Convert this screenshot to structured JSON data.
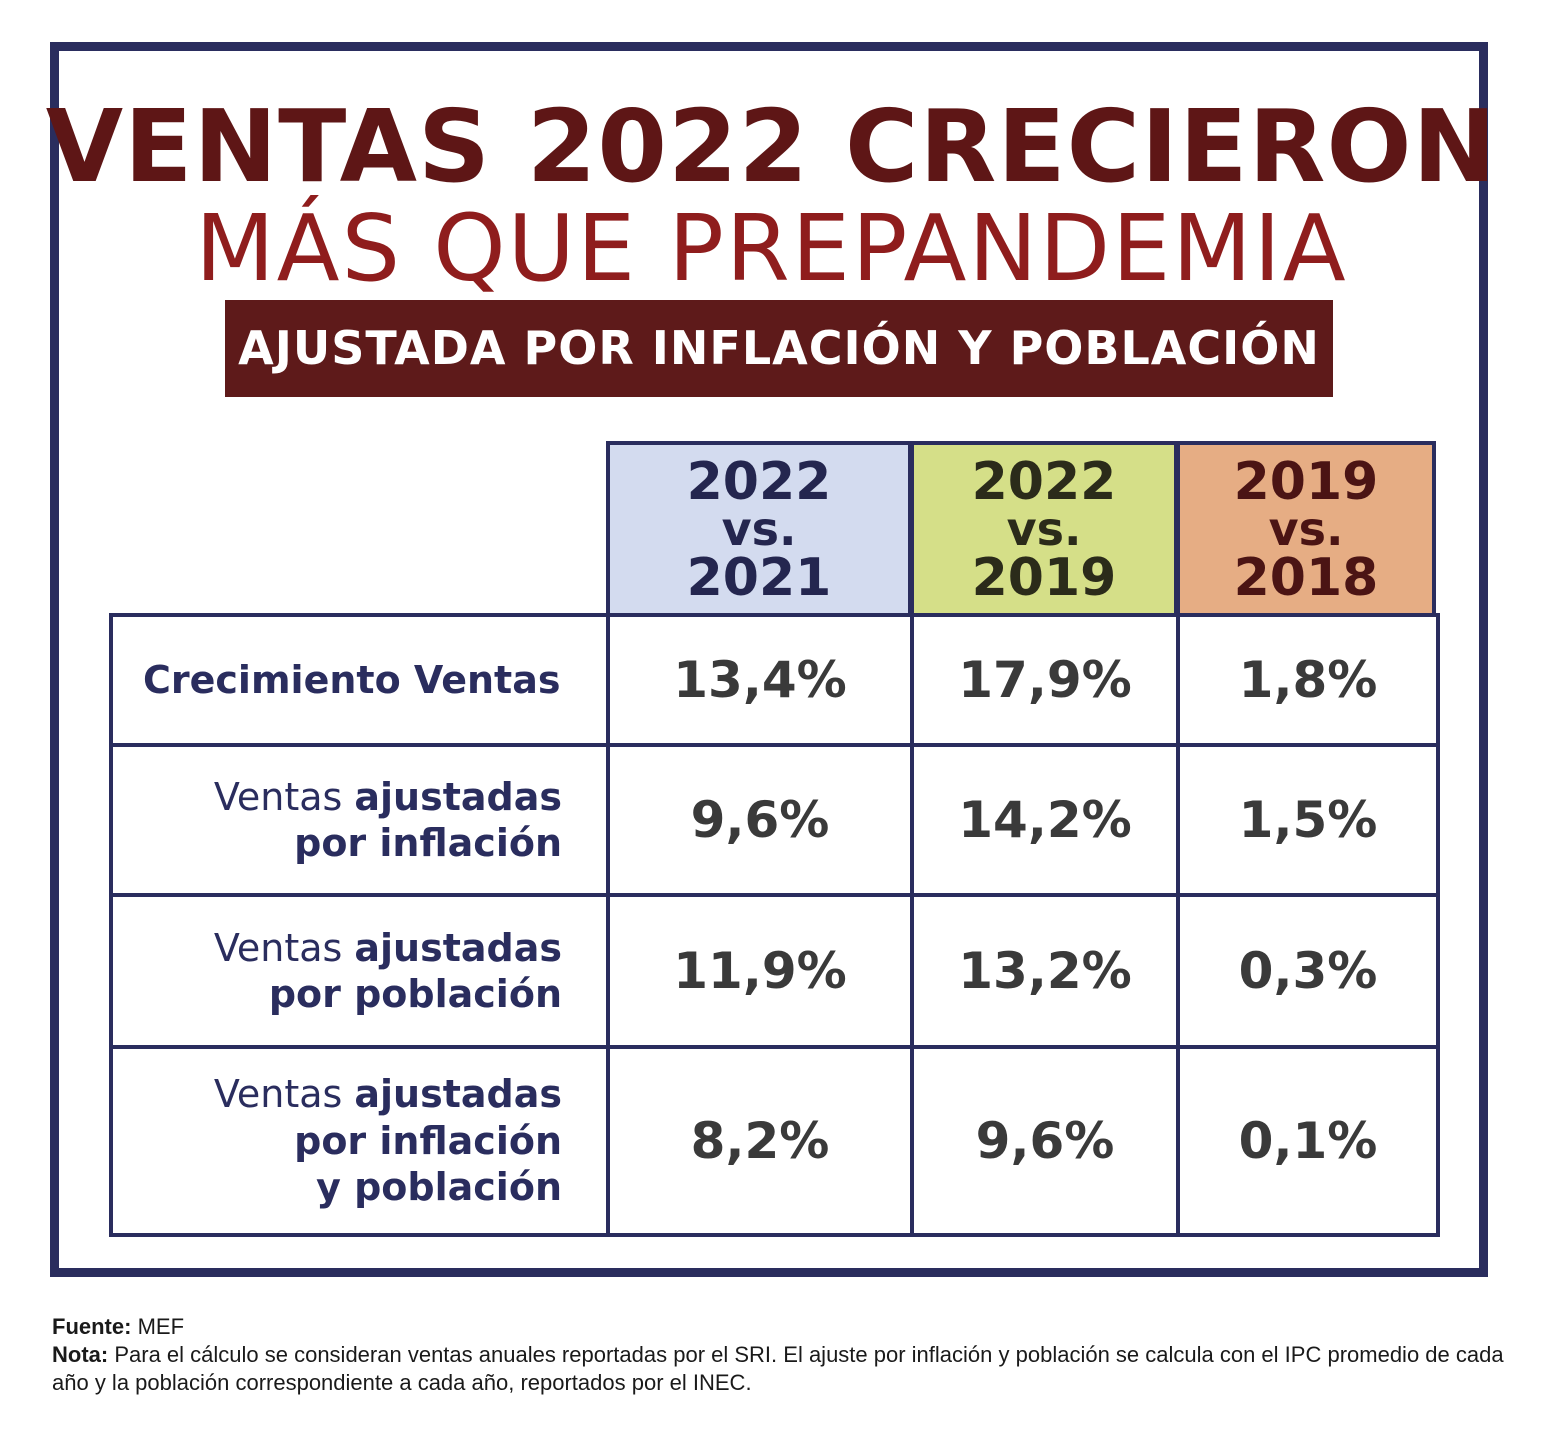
{
  "title_line1": "VENTAS 2022 CRECIERON",
  "title_line2": "MÁS QUE PREPANDEMIA",
  "subtitle": "AJUSTADA POR INFLACIÓN Y POBLACIÓN",
  "chart_data": {
    "type": "table",
    "columns": [
      {
        "top": "2022",
        "mid": "vs.",
        "bottom": "2021",
        "color": "#d3dbef"
      },
      {
        "top": "2022",
        "mid": "vs.",
        "bottom": "2019",
        "color": "#d5df88"
      },
      {
        "top": "2019",
        "mid": "vs.",
        "bottom": "2018",
        "color": "#e6ad84"
      }
    ],
    "rows": [
      {
        "label_lines": [
          {
            "plain": "Crecimiento Ventas",
            "bold": ""
          }
        ],
        "values": [
          "13,4%",
          "17,9%",
          "1,8%"
        ]
      },
      {
        "label_lines": [
          {
            "plain": "Ventas ",
            "bold": "ajustadas"
          },
          {
            "plain": "",
            "bold": "por inflación"
          }
        ],
        "values": [
          "9,6%",
          "14,2%",
          "1,5%"
        ]
      },
      {
        "label_lines": [
          {
            "plain": "Ventas ",
            "bold": "ajustadas"
          },
          {
            "plain": "",
            "bold": "por población"
          }
        ],
        "values": [
          "11,9%",
          "13,2%",
          "0,3%"
        ]
      },
      {
        "label_lines": [
          {
            "plain": "Ventas ",
            "bold": "ajustadas"
          },
          {
            "plain": "",
            "bold": "por inflación"
          },
          {
            "plain": "",
            "bold": "y población"
          }
        ],
        "values": [
          "8,2%",
          "9,6%",
          "0,1%"
        ]
      }
    ]
  },
  "source": {
    "fuente_label": "Fuente:",
    "fuente_text": " MEF",
    "nota_label": "Nota:",
    "nota_text": " Para el cálculo se consideran ventas anuales reportadas por el SRI. El ajuste por inflación y población se calcula con el IPC promedio de cada año y la población correspondiente a cada año, reportados por el INEC."
  },
  "colors": {
    "frame": "#2a2d5e",
    "title_dark": "#5e1616",
    "title_red": "#8f1d1d",
    "banner": "#5e1a1a"
  }
}
